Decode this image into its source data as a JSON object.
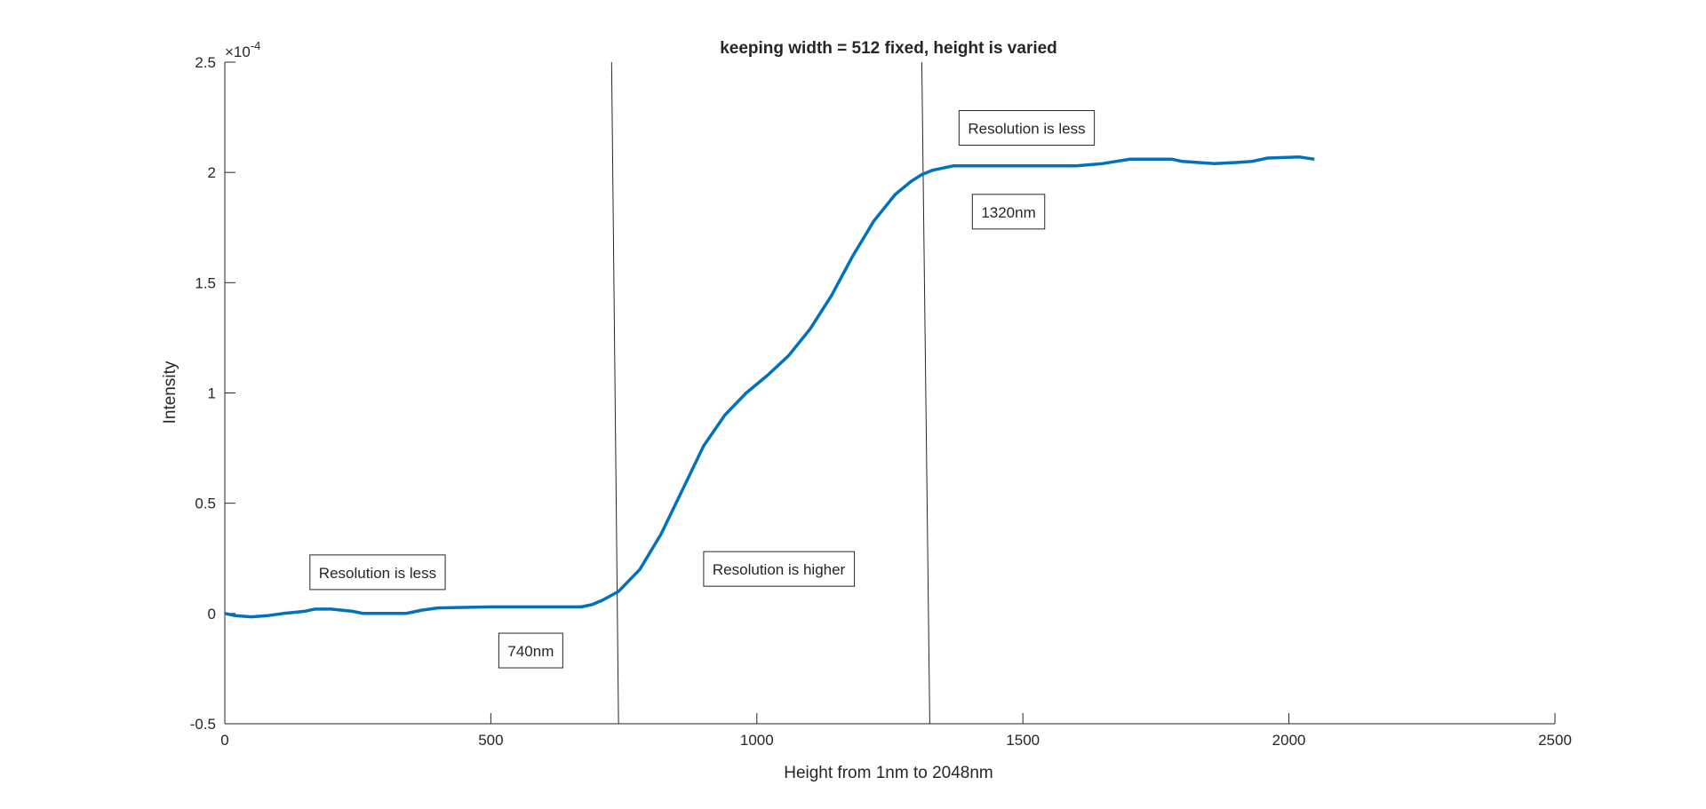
{
  "chart_data": {
    "type": "line",
    "title": "keeping width = 512 fixed, height is varied",
    "xlabel": "Height from 1nm to 2048nm",
    "ylabel": "Intensity",
    "y_exponent_label": "×10",
    "y_exponent_power": "-4",
    "xlim": [
      0,
      2500
    ],
    "ylim": [
      -0.5,
      2.5
    ],
    "xticks": [
      0,
      500,
      1000,
      1500,
      2000,
      2500
    ],
    "xtick_labels": [
      "0",
      "500",
      "1000",
      "1500",
      "2000",
      "2500"
    ],
    "yticks": [
      -0.5,
      0,
      0.5,
      1,
      1.5,
      2,
      2.5
    ],
    "ytick_labels": [
      "-0.5",
      "0",
      "0.5",
      "1",
      "1.5",
      "2",
      "2.5"
    ],
    "grid": false,
    "line_color": "#0072BD",
    "series": [
      {
        "x": [
          0,
          10,
          20,
          50,
          80,
          110,
          130,
          150,
          160,
          170,
          200,
          240,
          260,
          340,
          350,
          370,
          400,
          500,
          600,
          670,
          690,
          710,
          740,
          780,
          820,
          860,
          900,
          940,
          980,
          1020,
          1060,
          1100,
          1140,
          1180,
          1220,
          1260,
          1290,
          1310,
          1330,
          1350,
          1370,
          1400,
          1500,
          1600,
          1650,
          1700,
          1780,
          1800,
          1860,
          1900,
          1930,
          1960,
          2020,
          2048
        ],
        "y": [
          0.0,
          -0.005,
          -0.01,
          -0.015,
          -0.01,
          0.0,
          0.005,
          0.01,
          0.015,
          0.02,
          0.02,
          0.01,
          0.0,
          0.0,
          0.005,
          0.015,
          0.025,
          0.03,
          0.03,
          0.03,
          0.04,
          0.06,
          0.1,
          0.2,
          0.36,
          0.56,
          0.76,
          0.9,
          1.0,
          1.08,
          1.17,
          1.29,
          1.44,
          1.62,
          1.78,
          1.9,
          1.96,
          1.99,
          2.01,
          2.02,
          2.03,
          2.03,
          2.03,
          2.03,
          2.04,
          2.06,
          2.06,
          2.05,
          2.04,
          2.045,
          2.05,
          2.065,
          2.07,
          2.06
        ]
      }
    ],
    "vlines": [
      {
        "x_top": 727,
        "x_bottom": 740,
        "color": "#262626"
      },
      {
        "x_top": 1310,
        "x_bottom": 1325,
        "color": "#262626"
      }
    ],
    "annotations": [
      {
        "text": "Resolution is less",
        "x": 160,
        "y": 0.185
      },
      {
        "text": "740nm",
        "x": 515,
        "y": -0.17
      },
      {
        "text": "Resolution is higher",
        "x": 900,
        "y": 0.2
      },
      {
        "text": "Resolution is less",
        "x": 1380,
        "y": 2.2
      },
      {
        "text": "1320nm",
        "x": 1405,
        "y": 1.82
      }
    ]
  }
}
